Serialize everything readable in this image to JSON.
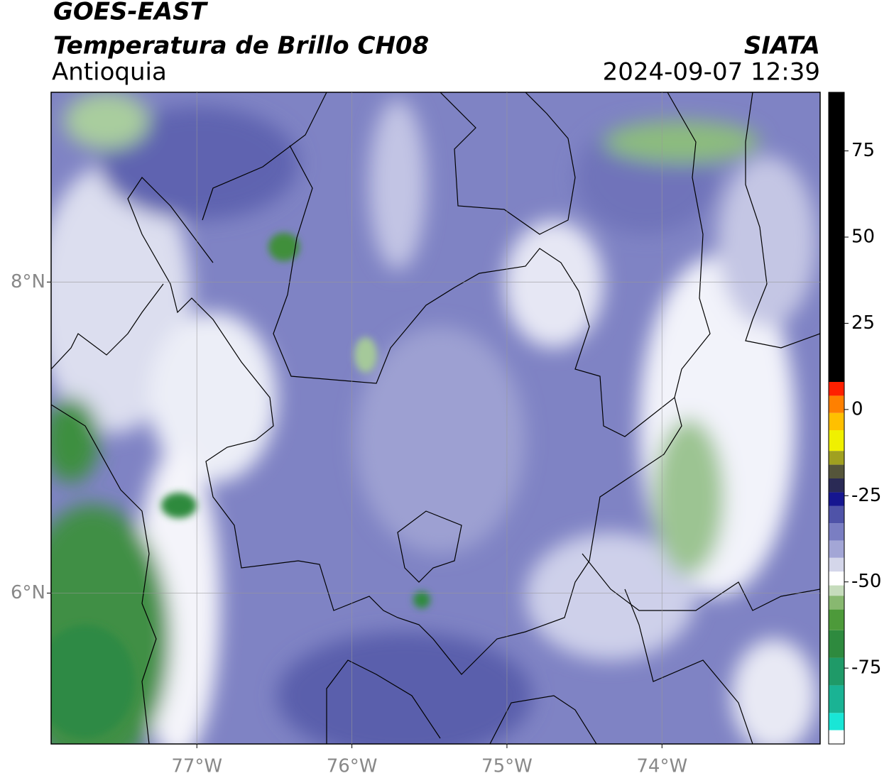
{
  "chart_data": {
    "type": "map",
    "title": "GOES-EAST",
    "subtitle": "Temperatura de Brillo CH08",
    "region": "Antioquia",
    "source": "SIATA",
    "timestamp": "2024-09-07 12:39",
    "xlim": [
      -77.94,
      -72.98
    ],
    "ylim": [
      5.03,
      9.22
    ],
    "xticks": [
      {
        "value": -77,
        "label": "77°W"
      },
      {
        "value": -76,
        "label": "76°W"
      },
      {
        "value": -75,
        "label": "75°W"
      },
      {
        "value": -74,
        "label": "74°W"
      }
    ],
    "yticks": [
      {
        "value": 6,
        "label": "6°N"
      },
      {
        "value": 8,
        "label": "8°N"
      }
    ],
    "grid": true,
    "colorbar": {
      "lim": [
        -97,
        92
      ],
      "ticks": [
        -75,
        -50,
        -25,
        0,
        25,
        50,
        75
      ],
      "stops": [
        {
          "value": -97,
          "color": "#ffffff"
        },
        {
          "value": -93,
          "color": "#19e6d6"
        },
        {
          "value": -88,
          "color": "#1ab394"
        },
        {
          "value": -80,
          "color": "#1f9a68"
        },
        {
          "value": -72,
          "color": "#2e8a3e"
        },
        {
          "value": -64,
          "color": "#4d9a3a"
        },
        {
          "value": -58,
          "color": "#88b870"
        },
        {
          "value": -54,
          "color": "#c6dcbc"
        },
        {
          "value": -51,
          "color": "#ffffff"
        },
        {
          "value": -47,
          "color": "#d4d6ea"
        },
        {
          "value": -43,
          "color": "#a3a6d6"
        },
        {
          "value": -38,
          "color": "#7a7ec2"
        },
        {
          "value": -33,
          "color": "#4f53a8"
        },
        {
          "value": -28,
          "color": "#161690"
        },
        {
          "value": -24,
          "color": "#2a2a55"
        },
        {
          "value": -20,
          "color": "#55553a"
        },
        {
          "value": -16,
          "color": "#a0a020"
        },
        {
          "value": -12,
          "color": "#f0f000"
        },
        {
          "value": -6,
          "color": "#ffc000"
        },
        {
          "value": -1,
          "color": "#ff8000"
        },
        {
          "value": 4,
          "color": "#ff2000"
        },
        {
          "value": 8,
          "color": "#000000"
        }
      ]
    }
  }
}
